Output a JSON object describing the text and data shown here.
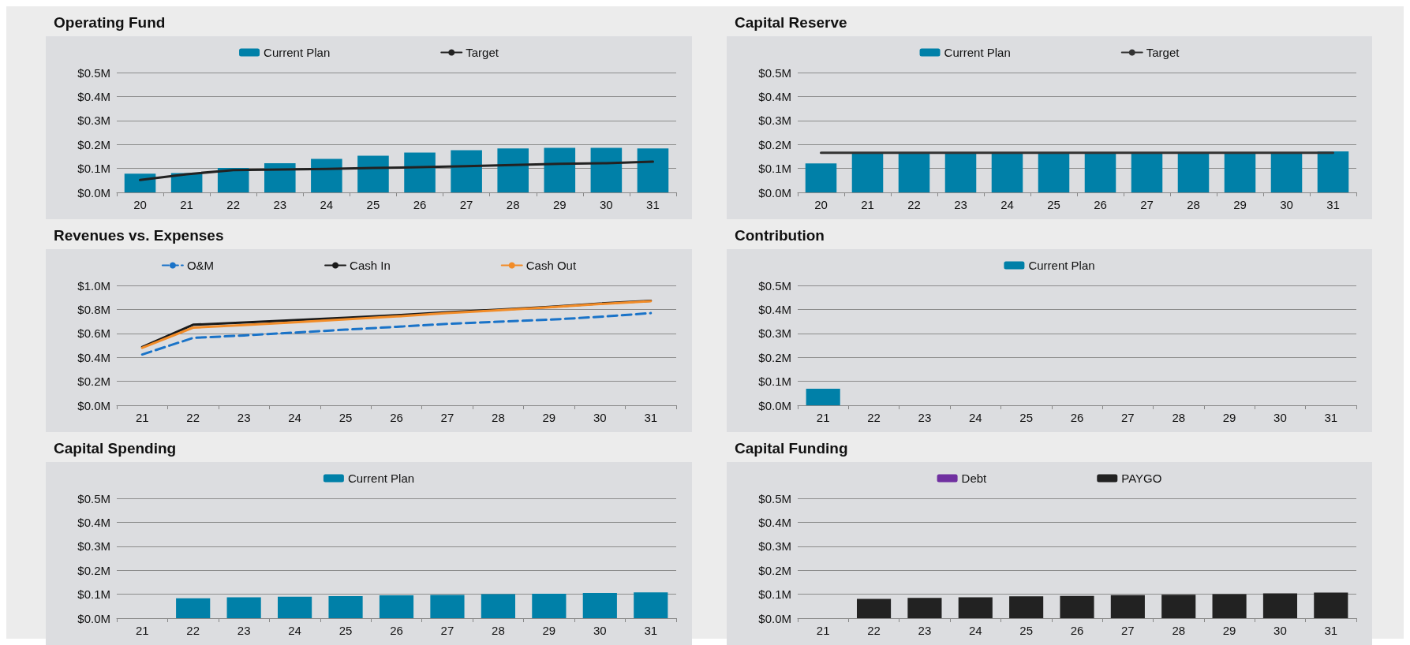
{
  "chart_data": [
    {
      "type": "bar",
      "title": "Operating Fund",
      "categories": [
        "20",
        "21",
        "22",
        "23",
        "24",
        "25",
        "26",
        "27",
        "28",
        "29",
        "30",
        "31"
      ],
      "ylim": [
        0,
        0.5
      ],
      "yticks": [
        {
          "value": 0,
          "label": "$0.0M"
        },
        {
          "value": 0.1,
          "label": "$0.1M"
        },
        {
          "value": 0.2,
          "label": "$0.2M"
        },
        {
          "value": 0.3,
          "label": "$0.3M"
        },
        {
          "value": 0.4,
          "label": "$0.4M"
        },
        {
          "value": 0.5,
          "label": "$0.5M"
        }
      ],
      "grid": "y",
      "legend": "top",
      "series": [
        {
          "name": "Current Plan",
          "color": "#0080a8",
          "values": [
            0.078,
            0.081,
            0.102,
            0.122,
            0.14,
            0.153,
            0.166,
            0.176,
            0.183,
            0.186,
            0.186,
            0.183
          ]
        },
        {
          "name": "Target",
          "type": "line",
          "color": "#222222",
          "line_style": "solid",
          "values": [
            0.052,
            0.076,
            0.093,
            0.095,
            0.098,
            0.102,
            0.105,
            0.109,
            0.114,
            0.119,
            0.122,
            0.128
          ]
        }
      ]
    },
    {
      "type": "bar",
      "title": "Capital Reserve",
      "categories": [
        "20",
        "21",
        "22",
        "23",
        "24",
        "25",
        "26",
        "27",
        "28",
        "29",
        "30",
        "31"
      ],
      "ylim": [
        0,
        0.5
      ],
      "yticks": [
        {
          "value": 0,
          "label": "$0.0M"
        },
        {
          "value": 0.1,
          "label": "$0.1M"
        },
        {
          "value": 0.2,
          "label": "$0.2M"
        },
        {
          "value": 0.3,
          "label": "$0.3M"
        },
        {
          "value": 0.4,
          "label": "$0.4M"
        },
        {
          "value": 0.5,
          "label": "$0.5M"
        }
      ],
      "grid": "y",
      "legend": "top",
      "series": [
        {
          "name": "Current Plan",
          "color": "#0080a8",
          "values": [
            0.121,
            0.165,
            0.165,
            0.165,
            0.165,
            0.165,
            0.165,
            0.165,
            0.165,
            0.165,
            0.165,
            0.171
          ]
        },
        {
          "name": "Target",
          "type": "line",
          "color": "#333333",
          "line_style": "solid",
          "values": [
            0.165,
            0.165,
            0.165,
            0.165,
            0.165,
            0.165,
            0.165,
            0.165,
            0.165,
            0.165,
            0.165,
            0.165
          ]
        }
      ]
    },
    {
      "type": "line",
      "title": "Revenues vs. Expenses",
      "categories": [
        "21",
        "22",
        "23",
        "24",
        "25",
        "26",
        "27",
        "28",
        "29",
        "30",
        "31"
      ],
      "ylim": [
        0,
        1
      ],
      "yticks": [
        {
          "value": 0,
          "label": "$0.0M"
        },
        {
          "value": 0.2,
          "label": "$0.2M"
        },
        {
          "value": 0.4,
          "label": "$0.4M"
        },
        {
          "value": 0.6,
          "label": "$0.6M"
        },
        {
          "value": 0.8,
          "label": "$0.8M"
        },
        {
          "value": 1,
          "label": "$1.0M"
        }
      ],
      "grid": "y",
      "legend": "top",
      "series": [
        {
          "name": "O&M",
          "color": "#1a73c8",
          "line_style": "dashed",
          "values": [
            0.424,
            0.562,
            0.583,
            0.607,
            0.631,
            0.655,
            0.679,
            0.697,
            0.714,
            0.738,
            0.769
          ]
        },
        {
          "name": "Cash In",
          "color": "#1a1a1a",
          "line_style": "solid",
          "values": [
            0.486,
            0.672,
            0.69,
            0.71,
            0.731,
            0.752,
            0.776,
            0.797,
            0.821,
            0.849,
            0.872
          ]
        },
        {
          "name": "Cash Out",
          "color": "#f28c28",
          "line_style": "solid",
          "values": [
            0.479,
            0.648,
            0.669,
            0.693,
            0.717,
            0.741,
            0.769,
            0.793,
            0.817,
            0.845,
            0.869
          ]
        }
      ]
    },
    {
      "type": "bar",
      "title": "Contribution",
      "categories": [
        "21",
        "22",
        "23",
        "24",
        "25",
        "26",
        "27",
        "28",
        "29",
        "30",
        "31"
      ],
      "ylim": [
        0,
        0.5
      ],
      "yticks": [
        {
          "value": 0,
          "label": "$0.0M"
        },
        {
          "value": 0.1,
          "label": "$0.1M"
        },
        {
          "value": 0.2,
          "label": "$0.2M"
        },
        {
          "value": 0.3,
          "label": "$0.3M"
        },
        {
          "value": 0.4,
          "label": "$0.4M"
        },
        {
          "value": 0.5,
          "label": "$0.5M"
        }
      ],
      "grid": "y",
      "legend": "top",
      "series": [
        {
          "name": "Current Plan",
          "color": "#0080a8",
          "values": [
            0.069,
            0,
            0,
            0,
            0,
            0,
            0,
            0,
            0,
            0,
            0
          ]
        }
      ]
    },
    {
      "type": "bar",
      "title": "Capital Spending",
      "categories": [
        "21",
        "22",
        "23",
        "24",
        "25",
        "26",
        "27",
        "28",
        "29",
        "30",
        "31"
      ],
      "ylim": [
        0,
        0.5
      ],
      "yticks": [
        {
          "value": 0,
          "label": "$0.0M"
        },
        {
          "value": 0.1,
          "label": "$0.1M"
        },
        {
          "value": 0.2,
          "label": "$0.2M"
        },
        {
          "value": 0.3,
          "label": "$0.3M"
        },
        {
          "value": 0.4,
          "label": "$0.4M"
        },
        {
          "value": 0.5,
          "label": "$0.5M"
        }
      ],
      "grid": "y",
      "legend": "top",
      "series": [
        {
          "name": "Current Plan",
          "color": "#0080a8",
          "values": [
            0,
            0.083,
            0.087,
            0.09,
            0.092,
            0.095,
            0.097,
            0.1,
            0.102,
            0.105,
            0.108
          ]
        }
      ]
    },
    {
      "type": "bar",
      "title": "Capital Funding",
      "stacked": true,
      "categories": [
        "21",
        "22",
        "23",
        "24",
        "25",
        "26",
        "27",
        "28",
        "29",
        "30",
        "31"
      ],
      "ylim": [
        0,
        0.5
      ],
      "yticks": [
        {
          "value": 0,
          "label": "$0.0M"
        },
        {
          "value": 0.1,
          "label": "$0.1M"
        },
        {
          "value": 0.2,
          "label": "$0.2M"
        },
        {
          "value": 0.3,
          "label": "$0.3M"
        },
        {
          "value": 0.4,
          "label": "$0.4M"
        },
        {
          "value": 0.5,
          "label": "$0.5M"
        }
      ],
      "grid": "y",
      "legend": "top",
      "series": [
        {
          "name": "Debt",
          "color": "#7030a0",
          "values": [
            0,
            0,
            0,
            0,
            0,
            0,
            0,
            0,
            0,
            0,
            0
          ]
        },
        {
          "name": "PAYGO",
          "color": "#222222",
          "values": [
            0,
            0.081,
            0.085,
            0.087,
            0.091,
            0.093,
            0.096,
            0.098,
            0.1,
            0.104,
            0.107
          ]
        }
      ]
    }
  ]
}
